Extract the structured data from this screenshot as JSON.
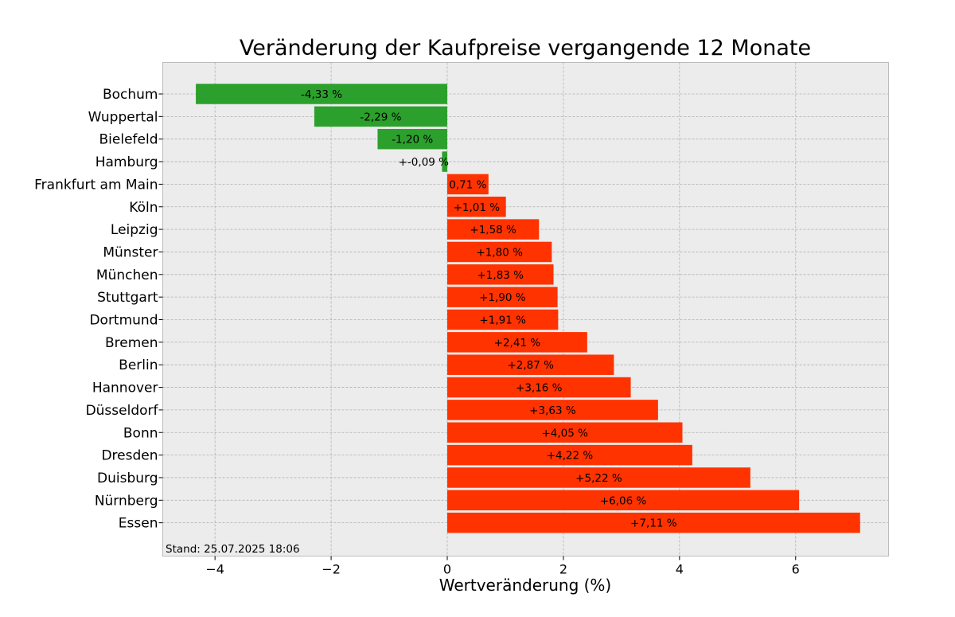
{
  "chart_data": {
    "type": "bar",
    "orientation": "horizontal",
    "title": "Veränderung der Kaufpreise vergangende 12 Monate",
    "xlabel": "Wertveränderung (%)",
    "ylabel": "",
    "xlim": [
      -4.9,
      7.6
    ],
    "xticks": [
      -4,
      -2,
      0,
      2,
      4,
      6
    ],
    "xtick_labels": [
      "−4",
      "−2",
      "0",
      "2",
      "4",
      "6"
    ],
    "grid": true,
    "categories": [
      "Bochum",
      "Wuppertal",
      "Bielefeld",
      "Hamburg",
      "Frankfurt am Main",
      "Köln",
      "Leipzig",
      "Münster",
      "München",
      "Stuttgart",
      "Dortmund",
      "Bremen",
      "Berlin",
      "Hannover",
      "Düsseldorf",
      "Bonn",
      "Dresden",
      "Duisburg",
      "Nürnberg",
      "Essen"
    ],
    "values": [
      -4.33,
      -2.29,
      -1.2,
      -0.09,
      0.71,
      1.01,
      1.58,
      1.8,
      1.83,
      1.9,
      1.91,
      2.41,
      2.87,
      3.16,
      3.63,
      4.05,
      4.22,
      5.22,
      6.06,
      7.11
    ],
    "value_labels": [
      "-4,33 %",
      "-2,29 %",
      "-1,20 %",
      "+-0,09 %",
      "0,71 %",
      "+1,01 %",
      "+1,58 %",
      "+1,80 %",
      "+1,83 %",
      "+1,90 %",
      "+1,91 %",
      "+2,41 %",
      "+2,87 %",
      "+3,16 %",
      "+3,63 %",
      "+4,05 %",
      "+4,22 %",
      "+5,22 %",
      "+6,06 %",
      "+7,11 %"
    ],
    "colors": {
      "negative": "#2ca02c",
      "positive": "#ff3300",
      "plot_background": "#ececec",
      "grid": "#b0b0b0"
    },
    "annotation": "Stand: 25.07.2025 18:06"
  }
}
